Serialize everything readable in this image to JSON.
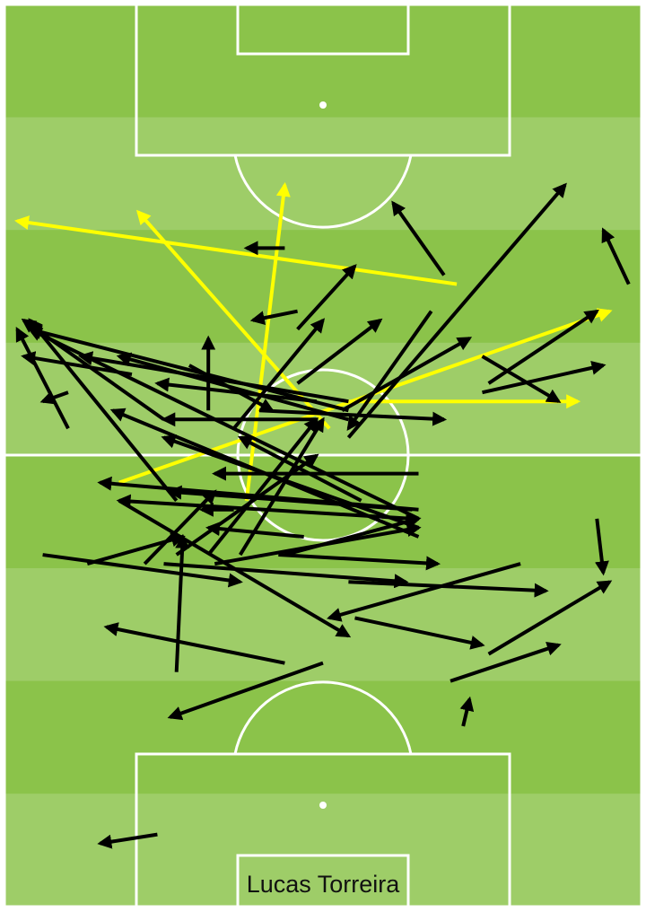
{
  "chart_data": {
    "type": "pass-map",
    "title": "Lucas Torreira",
    "pitch_units": {
      "x_range": [
        0,
        100
      ],
      "y_range": [
        0,
        100
      ],
      "attacking_direction": "up"
    },
    "colors": {
      "pitch_dark": "#8bc34a",
      "pitch_light": "#9ecd68",
      "lines": "#ffffff",
      "pass": "#000000",
      "highlight_pass": "#ffff00"
    },
    "passes": [
      {
        "from": [
          71,
          69
        ],
        "to": [
          2,
          76
        ],
        "highlight": true
      },
      {
        "from": [
          51,
          53
        ],
        "to": [
          21,
          77
        ],
        "highlight": true
      },
      {
        "from": [
          38,
          45
        ],
        "to": [
          44,
          80
        ],
        "highlight": true
      },
      {
        "from": [
          18,
          47
        ],
        "to": [
          95,
          66
        ],
        "highlight": true
      },
      {
        "from": [
          54,
          56
        ],
        "to": [
          90,
          56
        ],
        "highlight": true
      },
      {
        "from": [
          44,
          73
        ],
        "to": [
          38,
          73
        ]
      },
      {
        "from": [
          46,
          66
        ],
        "to": [
          39,
          65
        ]
      },
      {
        "from": [
          69,
          70
        ],
        "to": [
          61,
          78
        ]
      },
      {
        "from": [
          98,
          69
        ],
        "to": [
          94,
          75
        ]
      },
      {
        "from": [
          54,
          52
        ],
        "to": [
          88,
          80
        ]
      },
      {
        "from": [
          67,
          66
        ],
        "to": [
          54,
          53
        ]
      },
      {
        "from": [
          46,
          64
        ],
        "to": [
          55,
          71
        ]
      },
      {
        "from": [
          36,
          53
        ],
        "to": [
          50,
          65
        ]
      },
      {
        "from": [
          46,
          58
        ],
        "to": [
          59,
          65
        ]
      },
      {
        "from": [
          53,
          55
        ],
        "to": [
          73,
          63
        ]
      },
      {
        "from": [
          75,
          61
        ],
        "to": [
          87,
          56
        ]
      },
      {
        "from": [
          75,
          57
        ],
        "to": [
          94,
          60
        ]
      },
      {
        "from": [
          76,
          58
        ],
        "to": [
          93,
          66
        ]
      },
      {
        "from": [
          40,
          55
        ],
        "to": [
          69,
          54
        ]
      },
      {
        "from": [
          10,
          53
        ],
        "to": [
          2,
          64
        ]
      },
      {
        "from": [
          25,
          54
        ],
        "to": [
          3,
          65
        ]
      },
      {
        "from": [
          27,
          45
        ],
        "to": [
          4,
          65
        ]
      },
      {
        "from": [
          54,
          55
        ],
        "to": [
          4,
          64
        ]
      },
      {
        "from": [
          65,
          43
        ],
        "to": [
          4,
          64
        ]
      },
      {
        "from": [
          20,
          59
        ],
        "to": [
          3,
          61
        ]
      },
      {
        "from": [
          32,
          55
        ],
        "to": [
          32,
          63
        ]
      },
      {
        "from": [
          54,
          56
        ],
        "to": [
          12,
          61
        ]
      },
      {
        "from": [
          54,
          54
        ],
        "to": [
          18,
          61
        ]
      },
      {
        "from": [
          49,
          56
        ],
        "to": [
          24,
          58
        ]
      },
      {
        "from": [
          49,
          54
        ],
        "to": [
          25,
          54
        ]
      },
      {
        "from": [
          29,
          60
        ],
        "to": [
          42,
          55
        ]
      },
      {
        "from": [
          10,
          57
        ],
        "to": [
          6,
          56
        ]
      },
      {
        "from": [
          65,
          48
        ],
        "to": [
          33,
          48
        ]
      },
      {
        "from": [
          65,
          44
        ],
        "to": [
          15,
          47
        ]
      },
      {
        "from": [
          65,
          42
        ],
        "to": [
          25,
          52
        ]
      },
      {
        "from": [
          65,
          41
        ],
        "to": [
          17,
          55
        ]
      },
      {
        "from": [
          64,
          44
        ],
        "to": [
          26,
          46
        ]
      },
      {
        "from": [
          64,
          43
        ],
        "to": [
          18,
          45
        ]
      },
      {
        "from": [
          56,
          45
        ],
        "to": [
          37,
          52
        ]
      },
      {
        "from": [
          32,
          39
        ],
        "to": [
          49,
          54
        ]
      },
      {
        "from": [
          36,
          44
        ],
        "to": [
          31,
          44
        ]
      },
      {
        "from": [
          22,
          38
        ],
        "to": [
          33,
          46
        ]
      },
      {
        "from": [
          27,
          39
        ],
        "to": [
          49,
          50
        ]
      },
      {
        "from": [
          47,
          41
        ],
        "to": [
          32,
          42
        ]
      },
      {
        "from": [
          6,
          39
        ],
        "to": [
          37,
          36
        ]
      },
      {
        "from": [
          25,
          38
        ],
        "to": [
          63,
          36
        ]
      },
      {
        "from": [
          54,
          36
        ],
        "to": [
          85,
          35
        ]
      },
      {
        "from": [
          81,
          38
        ],
        "to": [
          51,
          32
        ]
      },
      {
        "from": [
          18,
          45
        ],
        "to": [
          54,
          30
        ]
      },
      {
        "from": [
          55,
          32
        ],
        "to": [
          75,
          29
        ]
      },
      {
        "from": [
          44,
          27
        ],
        "to": [
          16,
          31
        ]
      },
      {
        "from": [
          27,
          26
        ],
        "to": [
          28,
          41
        ]
      },
      {
        "from": [
          50,
          27
        ],
        "to": [
          26,
          21
        ]
      },
      {
        "from": [
          76,
          28
        ],
        "to": [
          95,
          36
        ]
      },
      {
        "from": [
          70,
          25
        ],
        "to": [
          87,
          29
        ]
      },
      {
        "from": [
          72,
          20
        ],
        "to": [
          73,
          23
        ]
      },
      {
        "from": [
          93,
          43
        ],
        "to": [
          94,
          37
        ]
      },
      {
        "from": [
          24,
          8
        ],
        "to": [
          15,
          7
        ]
      },
      {
        "from": [
          13,
          38
        ],
        "to": [
          28,
          41
        ]
      },
      {
        "from": [
          43,
          39
        ],
        "to": [
          68,
          38
        ]
      },
      {
        "from": [
          44,
          39
        ],
        "to": [
          65,
          43
        ]
      },
      {
        "from": [
          33,
          38
        ],
        "to": [
          65,
          42
        ]
      },
      {
        "from": [
          37,
          39
        ],
        "to": [
          50,
          54
        ]
      }
    ]
  }
}
